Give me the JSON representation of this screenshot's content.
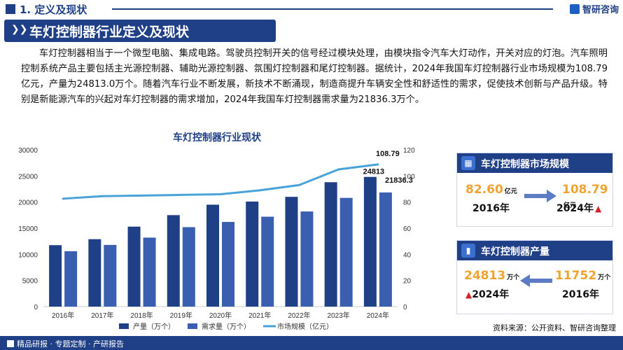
{
  "header": {
    "section_title": "1. 定义及现状",
    "logo_text": "智研咨询"
  },
  "banner": {
    "title": "车灯控制器行业定义及现状"
  },
  "paragraph": "车灯控制器相当于一个微型电脑、集成电路。驾驶员控制开关的信号经过模块处理，由模块指令汽车大灯动作，开关对应的灯泡。汽车照明控制系统产品主要包括主光源控制器、辅助光源控制器、氛围灯控制器和尾灯控制器。据统计，2024年我国车灯控制器行业市场规模为108.79亿元，产量为24813.0万个。随着汽车行业不断发展，新技术不断涌现，制造商提升车辆安全性和舒适性的需求，促使技术创新与产品升级。特别是新能源汽车的兴起对车灯控制器的需求增加，2024年我国车灯控制器需求量为21836.3万个。",
  "chart_data": {
    "type": "bar+line",
    "title": "车灯控制器行业现状",
    "categories": [
      "2016年",
      "2017年",
      "2018年",
      "2019年",
      "2020年",
      "2021年",
      "2022年",
      "2023年",
      "2024年"
    ],
    "series": [
      {
        "name": "产量（万个）",
        "type": "bar",
        "axis": "left",
        "color": "#1f3f86",
        "values": [
          11752,
          12900,
          15300,
          17500,
          19500,
          20100,
          21000,
          23800,
          24813
        ]
      },
      {
        "name": "需求量（万个）",
        "type": "bar",
        "axis": "left",
        "color": "#3b5fb0",
        "values": [
          10600,
          11800,
          13200,
          15200,
          16200,
          17200,
          18200,
          20800,
          21836.3
        ]
      },
      {
        "name": "市场规模（亿元）",
        "type": "line",
        "axis": "right",
        "color": "#4aa3d8",
        "values": [
          82.6,
          84.5,
          85.0,
          85.5,
          86.0,
          89.0,
          93.0,
          105.0,
          108.79
        ]
      }
    ],
    "y_left": {
      "min": 0,
      "max": 30000,
      "ticks": [
        0,
        5000,
        10000,
        15000,
        20000,
        25000,
        30000
      ]
    },
    "y_right": {
      "min": 0,
      "max": 120,
      "ticks": [
        0,
        20,
        40,
        60,
        80,
        100,
        120
      ]
    },
    "data_labels": {
      "line_last": "108.79",
      "bar1_last": "24813",
      "bar2_last": "21836.3"
    },
    "legend_position": "bottom",
    "grid": false
  },
  "card_market": {
    "title": "车灯控制器市场规模",
    "from_value": "82.60",
    "from_unit": "亿元",
    "from_year": "2016年",
    "to_value": "108.79",
    "to_unit": "亿元",
    "to_year": "2024年",
    "trend_icon": "up-arrow-icon"
  },
  "card_output": {
    "title": "车灯控制器产量",
    "left_value": "24813",
    "left_unit": "万个",
    "left_year": "2024年",
    "right_value": "11752",
    "right_unit": "万个",
    "right_year": "2016年",
    "trend_icon": "up-arrow-icon"
  },
  "footer": {
    "tagline": "精品研报 · 专题定制 · 产研报告",
    "source": "资料来源：公开资料、智研咨询整理"
  },
  "colors": {
    "brand": "#1f3f86",
    "accent": "#f0a330",
    "up": "#d3232a"
  }
}
